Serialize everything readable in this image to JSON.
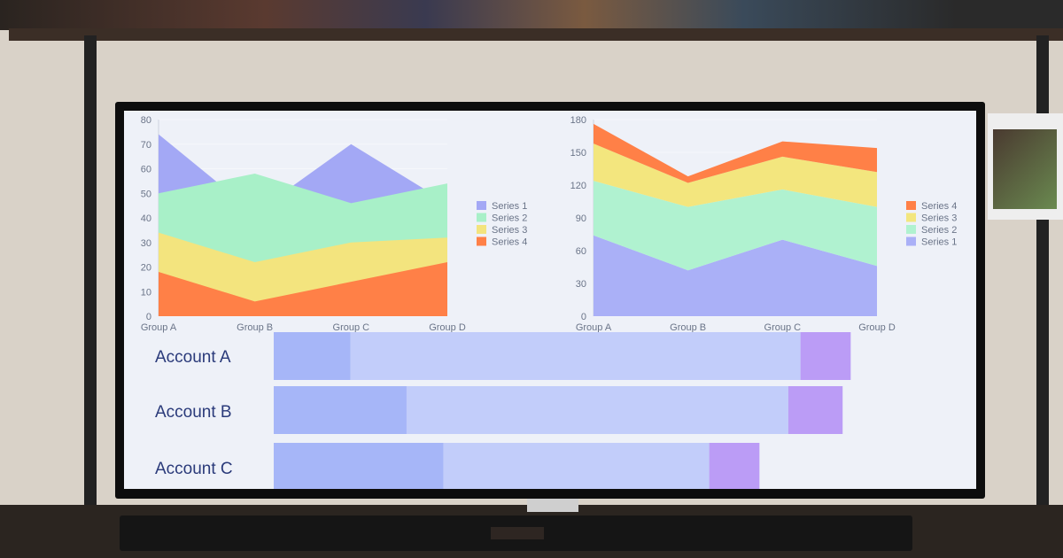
{
  "chart_data": [
    {
      "type": "area",
      "stacked": false,
      "categories": [
        "Group A",
        "Group B",
        "Group C",
        "Group D"
      ],
      "yticks": [
        0,
        10,
        20,
        30,
        40,
        50,
        60,
        70,
        80
      ],
      "ylim": [
        0,
        80
      ],
      "grid": true,
      "legend_position": "right",
      "legend": [
        "Series 1",
        "Series 2",
        "Series 3",
        "Series 4"
      ],
      "series": [
        {
          "name": "Series 1",
          "values": [
            74,
            42,
            70,
            46
          ],
          "color": "#a3a8f5"
        },
        {
          "name": "Series 2",
          "values": [
            50,
            58,
            46,
            54
          ],
          "color": "#a8f0c8"
        },
        {
          "name": "Series 3",
          "values": [
            34,
            22,
            30,
            32
          ],
          "color": "#f3e47e"
        },
        {
          "name": "Series 4",
          "values": [
            18,
            6,
            14,
            22
          ],
          "color": "#ff8047"
        }
      ]
    },
    {
      "type": "area",
      "stacked": true,
      "categories": [
        "Group A",
        "Group B",
        "Group C",
        "Group D"
      ],
      "yticks": [
        0,
        30,
        60,
        90,
        120,
        150,
        180
      ],
      "ylim": [
        0,
        180
      ],
      "grid": true,
      "legend_position": "right",
      "legend": [
        "Series 4",
        "Series 3",
        "Series 2",
        "Series 1"
      ],
      "series": [
        {
          "name": "Series 1",
          "values": [
            74,
            42,
            70,
            46
          ],
          "color": "#aab0f7"
        },
        {
          "name": "Series 2",
          "values": [
            50,
            58,
            46,
            54
          ],
          "color": "#b0f2d0"
        },
        {
          "name": "Series 3",
          "values": [
            34,
            22,
            30,
            32
          ],
          "color": "#f3e67e"
        },
        {
          "name": "Series 4",
          "values": [
            18,
            6,
            14,
            22
          ],
          "color": "#ff8047"
        }
      ]
    },
    {
      "type": "bar",
      "orientation": "horizontal",
      "stacked": true,
      "categories": [
        "Account A",
        "Account B",
        "Account C"
      ],
      "segments": [
        {
          "values": [
            13.3,
            23.0,
            29.4
          ],
          "color": "#a6b6f8"
        },
        {
          "values": [
            77.9,
            66.1,
            46.0
          ],
          "color": "#c2cdfa"
        },
        {
          "values": [
            8.7,
            9.4,
            8.7
          ],
          "color": "#bb9cf6"
        }
      ]
    }
  ]
}
